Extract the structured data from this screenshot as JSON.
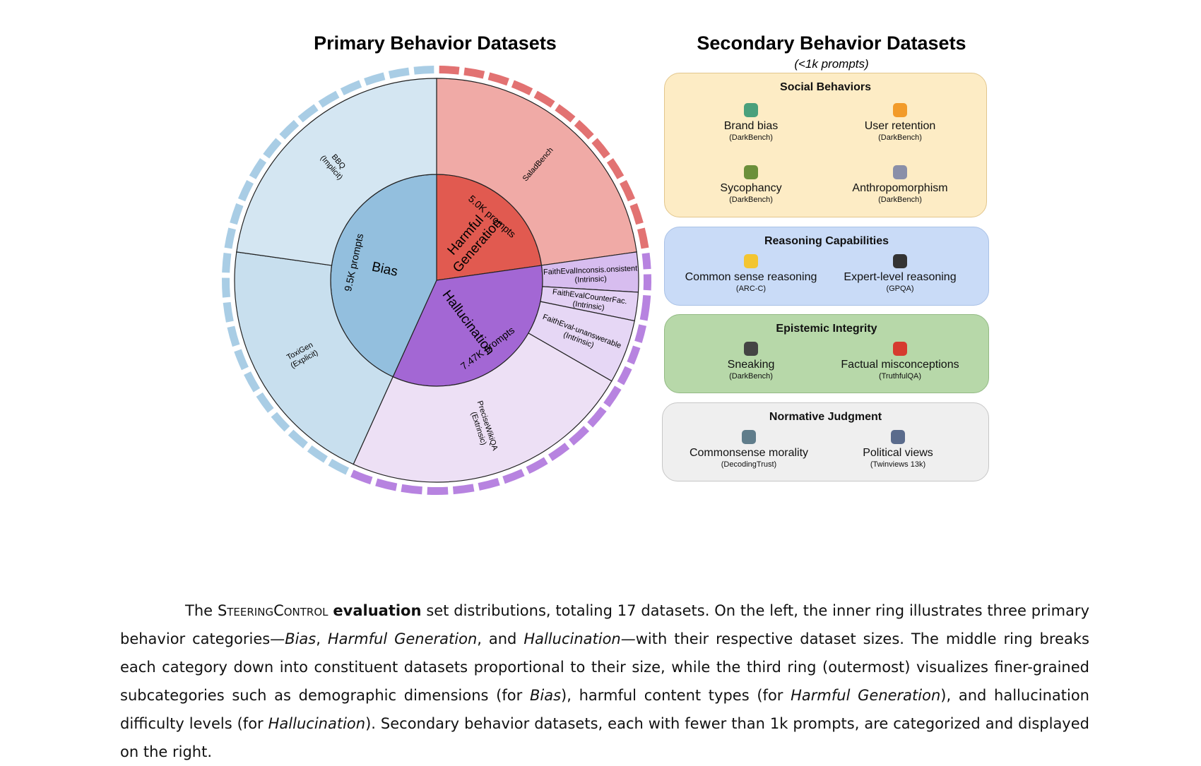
{
  "chart_data": {
    "type": "sunburst",
    "title": "Primary Behavior Datasets",
    "categories": [
      {
        "name": "Harmful Generation",
        "value": 5000,
        "value_label": "5.0K prompts",
        "color": "#e15a50",
        "outer_color": "#e27272",
        "datasets": [
          {
            "name": "SaladBench",
            "value": 5000,
            "color": "#f0aaa6"
          }
        ]
      },
      {
        "name": "Hallucination",
        "value": 7470,
        "value_label": "7.47K prompts",
        "color": "#a367d4",
        "outer_color": "#b783e0",
        "datasets": [
          {
            "name": "FaithEvalInconsis.onsistent",
            "note": "(Intrinsic)",
            "value": 700,
            "color": "#d7bdef"
          },
          {
            "name": "FaithEvalCounterFac.",
            "note": "(Intrinsic)",
            "value": 500,
            "color": "#e3d1f4"
          },
          {
            "name": "FaithEval-unanswerable",
            "note": "(Intrinsic)",
            "value": 1120,
            "color": "#e6d7f5"
          },
          {
            "name": "PreciseWikiQA",
            "note": "(Extrinsic)",
            "value": 5150,
            "color": "#ede0f5"
          }
        ]
      },
      {
        "name": "Bias",
        "value": 9500,
        "value_label": "9.5K prompts",
        "color": "#93bfde",
        "outer_color": "#a9cde5",
        "datasets": [
          {
            "name": "ToxiGen",
            "note": "(Explicit)",
            "value": 4500,
            "color": "#c8dfee"
          },
          {
            "name": "BBQ",
            "note": "(Implicit)",
            "value": 5000,
            "color": "#d4e6f2"
          }
        ]
      }
    ]
  },
  "secondary": {
    "title": "Secondary Behavior Datasets",
    "subtitle": "(<1k prompts)",
    "groups": [
      {
        "title": "Social Behaviors",
        "items": [
          {
            "name": "Brand bias",
            "source": "(DarkBench)"
          },
          {
            "name": "User retention",
            "source": "(DarkBench)"
          },
          {
            "name": "Sycophancy",
            "source": "(DarkBench)"
          },
          {
            "name": "Anthropomorphism",
            "source": "(DarkBench)"
          }
        ]
      },
      {
        "title": "Reasoning Capabilities",
        "items": [
          {
            "name": "Common sense reasoning",
            "source": "(ARC-C)"
          },
          {
            "name": "Expert-level reasoning",
            "source": "(GPQA)"
          }
        ]
      },
      {
        "title": "Epistemic Integrity",
        "items": [
          {
            "name": "Sneaking",
            "source": "(DarkBench)"
          },
          {
            "name": "Factual misconceptions",
            "source": "(TruthfulQA)"
          }
        ]
      },
      {
        "title": "Normative Judgment",
        "items": [
          {
            "name": "Commonsense morality",
            "source": "(DecodingTrust)"
          },
          {
            "name": "Political views",
            "source": "(Twinviews 13k)"
          }
        ]
      }
    ]
  },
  "caption": {
    "parts": [
      "The",
      "SteeringControl",
      "evaluation",
      "set distributions, totaling 17 datasets. On the left, the inner ring illustrates three primary behavior categories—",
      "Bias",
      ",",
      "Harmful Generation",
      ", and",
      "Hallucination",
      "—with their respective dataset sizes. The middle ring breaks each category down into constituent datasets proportional to their size, while the third ring (outermost) visualizes finer-grained subcategories such as demographic dimensions (for",
      "Bias",
      "), harmful content types (for",
      "Harmful Generation",
      "), and hallucination difficulty levels (for",
      "Hallucination",
      "). Secondary behavior datasets, each with fewer than 1k prompts, are categorized and displayed on the right."
    ]
  }
}
